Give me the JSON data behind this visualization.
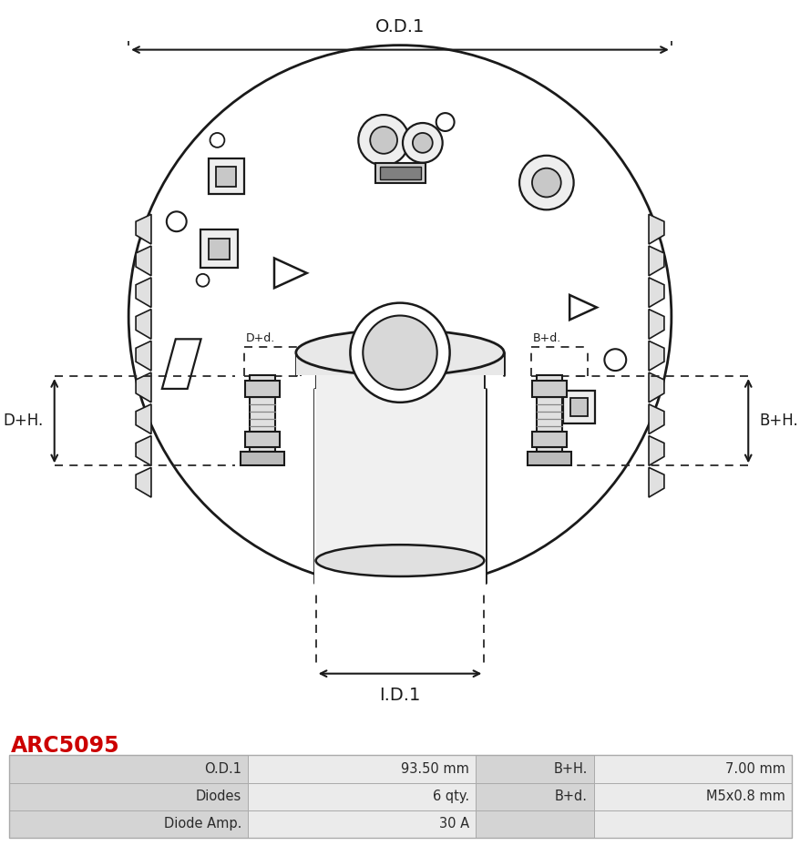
{
  "title": "ARC5095",
  "title_color": "#CC0000",
  "bg_color": "#ffffff",
  "table_data": [
    [
      "O.D.1",
      "93.50 mm",
      "B+H.",
      "7.00 mm"
    ],
    [
      "Diodes",
      "6 qty.",
      "B+d.",
      "M5x0.8 mm"
    ],
    [
      "Diode Amp.",
      "30 A",
      "",
      ""
    ]
  ],
  "dim_od1": "O.D.1",
  "dim_id1": "I.D.1",
  "dim_dh": "D+H.",
  "dim_dd": "D+d.",
  "dim_bh": "B+H.",
  "dim_bd": "B+d.",
  "line_color": "#1a1a1a",
  "table_header_bg": "#d4d4d4",
  "table_value_bg": "#ebebeb",
  "table_border": "#aaaaaa"
}
